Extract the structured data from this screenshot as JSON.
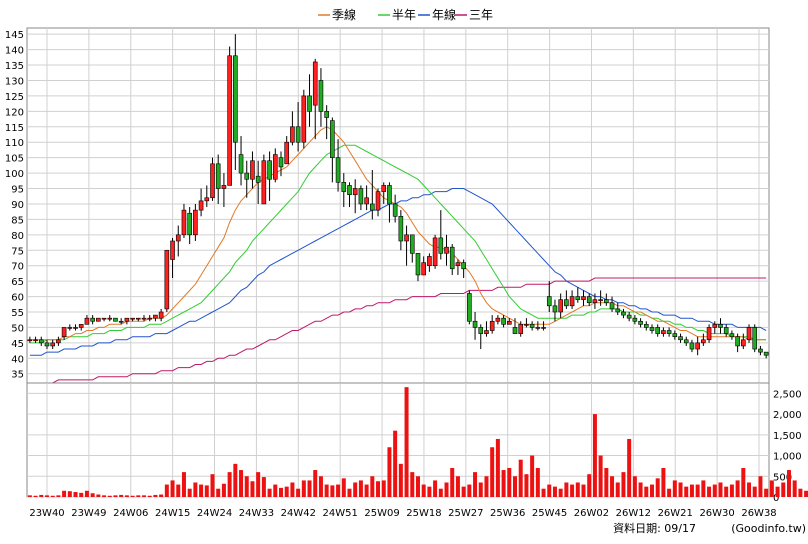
{
  "chart_data": [
    {
      "type": "line",
      "title": "",
      "legend": [
        "季線",
        "半年",
        "年線",
        "三年"
      ],
      "legend_colors": [
        "#e07a2a",
        "#33cc33",
        "#2255cc",
        "#c0186a"
      ],
      "legend_position": "top",
      "ylim": [
        32,
        147
      ],
      "yticks": [
        35,
        40,
        45,
        50,
        55,
        60,
        65,
        70,
        75,
        80,
        85,
        90,
        95,
        100,
        105,
        110,
        115,
        120,
        125,
        130,
        135,
        140,
        145
      ],
      "x_tick_labels": [
        "23W40",
        "23W49",
        "24W06",
        "24W15",
        "24W24",
        "24W33",
        "24W42",
        "24W51",
        "25W09",
        "25W18",
        "25W27",
        "25W36",
        "25W45",
        "26W02",
        "26W12",
        "26W21",
        "26W30",
        "26W38"
      ],
      "grid": true,
      "candles_ohlc": [
        [
          46,
          47,
          45,
          46
        ],
        [
          46,
          47,
          45,
          46
        ],
        [
          46,
          47,
          44,
          45
        ],
        [
          45,
          46,
          43,
          44
        ],
        [
          44,
          46,
          43,
          45
        ],
        [
          45,
          47,
          44,
          46
        ],
        [
          47,
          50,
          46,
          50
        ],
        [
          50,
          51,
          49,
          50
        ],
        [
          50,
          51,
          49,
          50
        ],
        [
          50,
          51,
          49,
          51
        ],
        [
          51,
          54,
          51,
          53
        ],
        [
          53,
          54,
          51,
          52
        ],
        [
          52,
          53,
          52,
          53
        ],
        [
          53,
          53,
          52,
          53
        ],
        [
          53,
          54,
          52,
          53
        ],
        [
          53,
          53,
          52,
          52
        ],
        [
          52,
          53,
          51,
          52
        ],
        [
          52,
          53,
          51,
          53
        ],
        [
          53,
          53,
          52,
          53
        ],
        [
          53,
          53,
          52,
          53
        ],
        [
          53,
          54,
          52,
          53
        ],
        [
          53,
          54,
          52,
          53
        ],
        [
          53,
          54,
          52,
          54
        ],
        [
          53,
          56,
          52,
          55
        ],
        [
          56,
          75,
          55,
          75
        ],
        [
          72,
          79,
          66,
          78
        ],
        [
          78,
          83,
          73,
          80
        ],
        [
          80,
          90,
          79,
          88
        ],
        [
          87,
          89,
          77,
          80
        ],
        [
          80,
          90,
          78,
          88
        ],
        [
          88,
          95,
          86,
          91
        ],
        [
          91,
          96,
          89,
          92
        ],
        [
          92,
          105,
          91,
          103
        ],
        [
          103,
          106,
          90,
          95
        ],
        [
          95,
          100,
          89,
          96
        ],
        [
          96,
          141,
          96,
          138
        ],
        [
          138,
          145,
          101,
          110
        ],
        [
          106,
          112,
          96,
          100
        ],
        [
          100,
          104,
          92,
          98
        ],
        [
          98,
          107,
          95,
          104
        ],
        [
          99,
          104,
          90,
          97
        ],
        [
          90,
          106,
          90,
          104
        ],
        [
          104,
          107,
          91,
          98
        ],
        [
          98,
          108,
          97,
          106
        ],
        [
          105,
          107,
          99,
          102
        ],
        [
          103,
          112,
          103,
          110
        ],
        [
          110,
          120,
          109,
          115
        ],
        [
          115,
          123,
          107,
          110
        ],
        [
          110,
          127,
          108,
          125
        ],
        [
          125,
          132,
          115,
          120
        ],
        [
          122,
          137,
          111,
          136
        ],
        [
          130,
          134,
          115,
          120
        ],
        [
          120,
          122,
          111,
          118
        ],
        [
          117,
          118,
          97,
          105
        ],
        [
          105,
          111,
          94,
          97
        ],
        [
          97,
          100,
          89,
          94
        ],
        [
          96,
          97,
          89,
          93
        ],
        [
          93,
          98,
          87,
          95
        ],
        [
          95,
          96,
          88,
          90
        ],
        [
          90,
          96,
          88,
          92
        ],
        [
          90,
          101,
          85,
          88
        ],
        [
          88,
          95,
          86,
          94
        ],
        [
          94,
          97,
          90,
          96
        ],
        [
          96,
          97,
          84,
          90
        ],
        [
          90,
          93,
          84,
          86
        ],
        [
          86,
          88,
          75,
          78
        ],
        [
          78,
          83,
          70,
          80
        ],
        [
          80,
          80,
          71,
          74
        ],
        [
          74,
          74,
          65,
          67
        ],
        [
          67,
          73,
          67,
          71
        ],
        [
          70,
          74,
          68,
          73
        ],
        [
          70,
          80,
          69,
          79
        ],
        [
          79,
          88,
          72,
          74
        ],
        [
          74,
          80,
          70,
          76
        ],
        [
          76,
          77,
          67,
          69
        ],
        [
          70,
          72,
          67,
          71
        ],
        [
          71,
          72,
          66,
          69
        ],
        [
          61,
          62,
          51,
          52
        ],
        [
          52,
          55,
          46,
          50
        ],
        [
          50,
          51,
          43,
          48
        ],
        [
          48,
          52,
          47,
          49
        ],
        [
          49,
          54,
          48,
          52
        ],
        [
          52,
          54,
          51,
          53
        ],
        [
          53,
          54,
          50,
          51
        ],
        [
          51,
          53,
          51,
          52
        ],
        [
          50,
          53,
          48,
          48
        ],
        [
          48,
          52,
          47,
          51
        ],
        [
          51,
          53,
          50,
          51
        ],
        [
          51,
          52,
          49,
          50
        ],
        [
          50,
          52,
          49,
          50
        ],
        [
          50,
          52,
          49,
          50
        ],
        [
          60,
          65,
          55,
          57
        ],
        [
          57,
          59,
          52,
          55
        ],
        [
          55,
          61,
          53,
          59
        ],
        [
          59,
          62,
          56,
          57
        ],
        [
          57,
          62,
          56,
          60
        ],
        [
          60,
          63,
          58,
          59
        ],
        [
          59,
          62,
          57,
          60
        ],
        [
          60,
          61,
          57,
          58
        ],
        [
          58,
          61,
          56,
          59
        ],
        [
          59,
          62,
          57,
          59
        ],
        [
          59,
          61,
          57,
          58
        ],
        [
          58,
          60,
          55,
          56
        ],
        [
          56,
          58,
          54,
          55
        ],
        [
          55,
          56,
          53,
          54
        ],
        [
          54,
          55,
          52,
          53
        ],
        [
          53,
          54,
          51,
          52
        ],
        [
          52,
          53,
          50,
          51
        ],
        [
          51,
          52,
          49,
          50
        ],
        [
          50,
          51,
          48,
          49
        ],
        [
          50,
          51,
          47,
          48
        ],
        [
          48,
          50,
          47,
          49
        ],
        [
          49,
          50,
          47,
          48
        ],
        [
          48,
          49,
          46,
          47
        ],
        [
          47,
          48,
          45,
          46
        ],
        [
          46,
          47,
          44,
          45
        ],
        [
          45,
          46,
          42,
          43
        ],
        [
          43,
          47,
          41,
          45
        ],
        [
          45,
          48,
          44,
          46
        ],
        [
          46,
          51,
          45,
          50
        ],
        [
          50,
          52,
          48,
          51
        ],
        [
          51,
          53,
          48,
          50
        ],
        [
          50,
          51,
          47,
          48
        ],
        [
          48,
          49,
          46,
          47
        ],
        [
          47,
          48,
          42,
          44
        ],
        [
          44,
          48,
          43,
          46
        ],
        [
          46,
          51,
          45,
          50
        ],
        [
          50,
          51,
          42,
          43
        ],
        [
          43,
          44,
          41,
          42
        ],
        [
          42,
          42,
          40,
          41
        ]
      ],
      "ma_quarter": [
        46,
        46,
        46,
        46,
        46,
        46,
        47,
        47,
        48,
        48,
        49,
        49,
        50,
        50,
        51,
        51,
        51,
        52,
        52,
        52,
        52,
        53,
        53,
        53,
        54,
        56,
        58,
        60,
        62,
        64,
        67,
        70,
        73,
        76,
        79,
        84,
        88,
        91,
        93,
        95,
        97,
        98,
        99,
        100,
        101,
        102,
        104,
        106,
        108,
        110,
        112,
        114,
        115,
        114,
        112,
        110,
        107,
        104,
        101,
        98,
        96,
        94,
        92,
        91,
        90,
        89,
        87,
        84,
        81,
        79,
        77,
        76,
        76,
        75,
        74,
        72,
        70,
        68,
        65,
        61,
        58,
        56,
        55,
        54,
        53,
        52,
        51,
        51,
        51,
        51,
        51,
        51,
        52,
        53,
        54,
        55,
        56,
        57,
        57,
        58,
        58,
        58,
        58,
        57,
        57,
        56,
        55,
        55,
        54,
        53,
        52,
        52,
        51,
        50,
        49,
        49,
        48,
        47,
        47,
        47,
        47,
        47,
        47,
        47,
        47,
        47,
        46,
        46,
        46,
        46
      ],
      "ma_half": [
        45,
        45,
        45,
        46,
        46,
        46,
        46,
        47,
        47,
        47,
        47,
        48,
        48,
        48,
        49,
        49,
        49,
        50,
        50,
        50,
        50,
        51,
        51,
        51,
        52,
        53,
        54,
        55,
        56,
        57,
        58,
        60,
        62,
        64,
        66,
        68,
        71,
        73,
        75,
        78,
        80,
        82,
        84,
        86,
        88,
        90,
        92,
        94,
        97,
        100,
        102,
        104,
        106,
        107,
        108,
        109,
        109,
        109,
        108,
        107,
        106,
        105,
        104,
        103,
        102,
        101,
        100,
        99,
        98,
        96,
        94,
        92,
        90,
        88,
        86,
        84,
        82,
        80,
        78,
        75,
        72,
        69,
        66,
        63,
        60,
        58,
        56,
        55,
        54,
        53,
        53,
        53,
        53,
        53,
        53,
        54,
        54,
        54,
        55,
        55,
        56,
        56,
        56,
        56,
        55,
        55,
        55,
        54,
        54,
        53,
        53,
        52,
        52,
        51,
        51,
        50,
        50,
        49,
        49,
        48,
        48,
        48,
        48,
        47,
        47,
        47,
        47,
        46,
        46,
        46
      ],
      "ma_year": [
        41,
        41,
        41,
        42,
        42,
        42,
        43,
        43,
        43,
        44,
        44,
        44,
        45,
        45,
        45,
        46,
        46,
        46,
        47,
        47,
        47,
        47,
        48,
        48,
        48,
        49,
        50,
        51,
        52,
        52,
        53,
        54,
        55,
        56,
        57,
        58,
        60,
        62,
        63,
        65,
        67,
        68,
        70,
        71,
        72,
        73,
        74,
        75,
        76,
        77,
        78,
        79,
        80,
        81,
        82,
        83,
        84,
        85,
        86,
        87,
        88,
        88,
        89,
        90,
        90,
        91,
        91,
        92,
        92,
        93,
        93,
        94,
        94,
        94,
        95,
        95,
        95,
        94,
        93,
        92,
        91,
        90,
        88,
        86,
        84,
        82,
        80,
        78,
        76,
        74,
        72,
        70,
        68,
        67,
        65,
        64,
        63,
        62,
        61,
        60,
        60,
        59,
        59,
        58,
        58,
        57,
        57,
        56,
        56,
        55,
        55,
        54,
        54,
        54,
        53,
        53,
        53,
        52,
        52,
        52,
        51,
        51,
        51,
        51,
        50,
        50,
        50,
        50,
        50,
        49
      ],
      "ma_3year": [
        32,
        32,
        32,
        32,
        32,
        33,
        33,
        33,
        33,
        33,
        33,
        33,
        34,
        34,
        34,
        34,
        34,
        34,
        35,
        35,
        35,
        35,
        35,
        36,
        36,
        36,
        37,
        37,
        37,
        38,
        38,
        39,
        39,
        40,
        40,
        41,
        41,
        42,
        43,
        43,
        44,
        45,
        46,
        46,
        47,
        48,
        49,
        49,
        50,
        51,
        52,
        52,
        53,
        54,
        54,
        55,
        55,
        56,
        56,
        57,
        57,
        58,
        58,
        58,
        59,
        59,
        59,
        60,
        60,
        60,
        60,
        60,
        61,
        61,
        61,
        61,
        61,
        62,
        62,
        62,
        62,
        62,
        63,
        63,
        63,
        63,
        63,
        64,
        64,
        64,
        64,
        64,
        65,
        65,
        65,
        65,
        65,
        65,
        65,
        66,
        66,
        66,
        66,
        66,
        66,
        66,
        66,
        66,
        66,
        66,
        66,
        66,
        66,
        66,
        66,
        66,
        66,
        66,
        66,
        66,
        66,
        66,
        66,
        66,
        66,
        66,
        66,
        66,
        66,
        66
      ]
    },
    {
      "type": "bar",
      "title": "",
      "ylim": [
        0,
        2750
      ],
      "yticks": [
        0,
        500,
        1000,
        1500,
        2000,
        2500
      ],
      "ytick_labels": [
        "0",
        "500",
        "1,000",
        "1,500",
        "2,000",
        "2,500"
      ],
      "values": [
        40,
        30,
        50,
        40,
        30,
        40,
        150,
        140,
        120,
        100,
        150,
        90,
        60,
        40,
        30,
        40,
        50,
        40,
        30,
        40,
        40,
        30,
        50,
        60,
        300,
        400,
        300,
        600,
        200,
        350,
        300,
        280,
        550,
        200,
        320,
        600,
        800,
        650,
        500,
        380,
        600,
        480,
        200,
        300,
        220,
        250,
        350,
        200,
        400,
        400,
        650,
        500,
        300,
        280,
        300,
        450,
        200,
        350,
        400,
        300,
        500,
        380,
        400,
        1200,
        1600,
        800,
        2650,
        600,
        500,
        300,
        250,
        400,
        200,
        350,
        700,
        500,
        250,
        300,
        600,
        350,
        500,
        1200,
        1400,
        650,
        700,
        500,
        900,
        550,
        1000,
        700,
        200,
        300,
        250,
        200,
        350,
        300,
        350,
        300,
        550,
        2000,
        1000,
        700,
        500,
        350,
        600,
        1400,
        500,
        350,
        250,
        300,
        450,
        700,
        200,
        400,
        350,
        250,
        300,
        300,
        400,
        250,
        300,
        350,
        250,
        300,
        400,
        700,
        350,
        250,
        500,
        200,
        400,
        250,
        350,
        650,
        400,
        200,
        150,
        100
      ]
    }
  ],
  "footer": {
    "date_text": "資料日期: 09/17",
    "site_text": "(Goodinfo.tw)"
  }
}
